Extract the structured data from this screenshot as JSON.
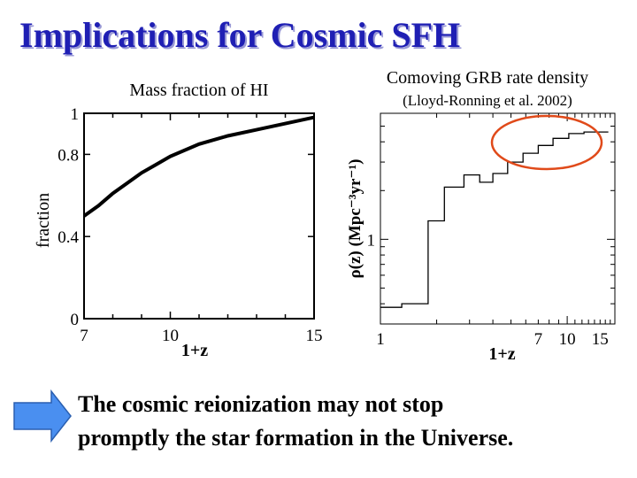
{
  "slide": {
    "title": "Implications for Cosmic SFH",
    "conclusion": {
      "line1": "The cosmic reionization may not stop",
      "line2": "promptly the star formation in the Universe."
    },
    "colors": {
      "title": "#1f1fb4",
      "arrow_fill": "#4a8ff0",
      "highlight_ellipse": "#e04a1a"
    },
    "icons": [
      "right-arrow-icon"
    ]
  },
  "chart_data": [
    {
      "type": "line",
      "title": "Mass fraction of HI",
      "xlabel": "1+z",
      "ylabel": "fraction",
      "xlim": [
        7,
        15
      ],
      "ylim": [
        0,
        1
      ],
      "x_ticks": [
        7,
        10,
        15
      ],
      "y_ticks": [
        0,
        0.4,
        0.8,
        1
      ],
      "y_tick_labels": [
        "0",
        "0.4",
        "0.8",
        "1"
      ],
      "series": [
        {
          "x": [
            7,
            7.5,
            8,
            8.5,
            9,
            9.5,
            10,
            11,
            12,
            13,
            14,
            15
          ],
          "values": [
            0.5,
            0.55,
            0.61,
            0.66,
            0.71,
            0.75,
            0.79,
            0.85,
            0.89,
            0.92,
            0.95,
            0.98
          ]
        }
      ],
      "grid": false
    },
    {
      "type": "line",
      "style": "step",
      "title": "Comoving GRB rate density",
      "subtitle": "(Lloyd-Ronning et al. 2002)",
      "xlabel": "1+z",
      "ylabel": "ρ(z) (Mpc⁻³yr⁻¹)",
      "x_scale": "log",
      "y_scale": "log",
      "xlim": [
        1,
        18
      ],
      "ylim": [
        0.3,
        6
      ],
      "x_ticks": [
        1,
        7,
        10,
        15
      ],
      "y_ticks": [
        1
      ],
      "edges": [
        1,
        1.3,
        1.8,
        2.2,
        2.8,
        3.4,
        4.0,
        4.8,
        5.8,
        7.0,
        8.4,
        10.2,
        12.3,
        16.6
      ],
      "values": [
        0.38,
        0.4,
        1.3,
        2.1,
        2.5,
        2.25,
        2.55,
        3.0,
        3.4,
        3.8,
        4.2,
        4.5,
        4.6
      ],
      "annotation": "ellipse highlighting high-z bins",
      "grid": false
    }
  ]
}
